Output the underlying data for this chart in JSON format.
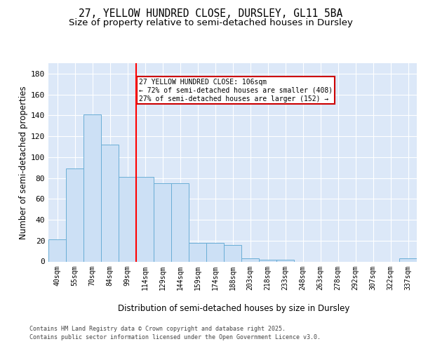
{
  "title_line1": "27, YELLOW HUNDRED CLOSE, DURSLEY, GL11 5BA",
  "title_line2": "Size of property relative to semi-detached houses in Dursley",
  "xlabel": "Distribution of semi-detached houses by size in Dursley",
  "ylabel": "Number of semi-detached properties",
  "categories": [
    "40sqm",
    "55sqm",
    "70sqm",
    "84sqm",
    "99sqm",
    "114sqm",
    "129sqm",
    "144sqm",
    "159sqm",
    "174sqm",
    "188sqm",
    "203sqm",
    "218sqm",
    "233sqm",
    "248sqm",
    "263sqm",
    "278sqm",
    "292sqm",
    "307sqm",
    "322sqm",
    "337sqm"
  ],
  "values": [
    21,
    89,
    141,
    112,
    81,
    81,
    75,
    75,
    18,
    18,
    16,
    3,
    2,
    2,
    0,
    0,
    0,
    0,
    0,
    0,
    3
  ],
  "bar_color": "#cce0f5",
  "bar_edge_color": "#6aaed6",
  "annotation_text": "27 YELLOW HUNDRED CLOSE: 106sqm\n← 72% of semi-detached houses are smaller (408)\n27% of semi-detached houses are larger (152) →",
  "annotation_box_color": "#ffffff",
  "annotation_box_edge_color": "#cc0000",
  "ylim": [
    0,
    190
  ],
  "yticks": [
    0,
    20,
    40,
    60,
    80,
    100,
    120,
    140,
    160,
    180
  ],
  "background_color": "#dce8f8",
  "grid_color": "#ffffff",
  "footer_line1": "Contains HM Land Registry data © Crown copyright and database right 2025.",
  "footer_line2": "Contains public sector information licensed under the Open Government Licence v3.0.",
  "title_fontsize": 10.5,
  "subtitle_fontsize": 9.5,
  "tick_fontsize": 7,
  "axis_label_fontsize": 8.5,
  "footer_fontsize": 6.0
}
